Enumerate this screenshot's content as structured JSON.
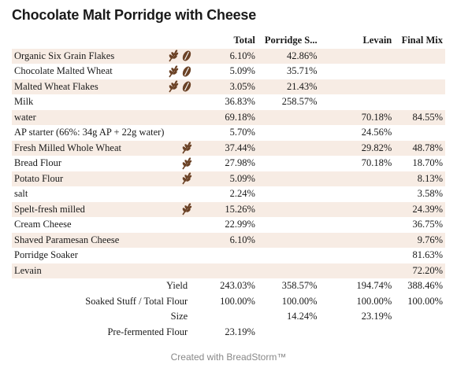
{
  "title": "Chocolate Malt Porridge with Cheese",
  "columns": [
    "Total",
    "Porridge S...",
    "Levain",
    "Final Mix"
  ],
  "icon_color": "#6b4226",
  "shade_color": "#f7ece4",
  "ingredients": [
    {
      "name": "Organic Six Grain Flakes",
      "icons": [
        "wheat-icon",
        "grain-icon"
      ],
      "shaded": true,
      "total": "6.10%",
      "soaker": "42.86%",
      "levain": "",
      "final": ""
    },
    {
      "name": "Chocolate Malted Wheat",
      "icons": [
        "wheat-icon",
        "grain-icon"
      ],
      "shaded": false,
      "total": "5.09%",
      "soaker": "35.71%",
      "levain": "",
      "final": ""
    },
    {
      "name": "Malted Wheat Flakes",
      "icons": [
        "wheat-icon",
        "grain-icon"
      ],
      "shaded": true,
      "total": "3.05%",
      "soaker": "21.43%",
      "levain": "",
      "final": ""
    },
    {
      "name": "Milk",
      "icons": [],
      "shaded": false,
      "total": "36.83%",
      "soaker": "258.57%",
      "levain": "",
      "final": ""
    },
    {
      "name": "water",
      "icons": [],
      "shaded": true,
      "total": "69.18%",
      "soaker": "",
      "levain": "70.18%",
      "final": "84.55%"
    },
    {
      "name": "AP starter (66%: 34g AP + 22g water)",
      "icons": [],
      "shaded": false,
      "total": "5.70%",
      "soaker": "",
      "levain": "24.56%",
      "final": ""
    },
    {
      "name": "Fresh Milled Whole Wheat",
      "icons": [
        "wheat-icon"
      ],
      "shaded": true,
      "total": "37.44%",
      "soaker": "",
      "levain": "29.82%",
      "final": "48.78%"
    },
    {
      "name": "Bread Flour",
      "icons": [
        "wheat-icon"
      ],
      "shaded": false,
      "total": "27.98%",
      "soaker": "",
      "levain": "70.18%",
      "final": "18.70%"
    },
    {
      "name": "Potato Flour",
      "icons": [
        "wheat-icon"
      ],
      "shaded": true,
      "total": "5.09%",
      "soaker": "",
      "levain": "",
      "final": "8.13%"
    },
    {
      "name": "salt",
      "icons": [],
      "shaded": false,
      "total": "2.24%",
      "soaker": "",
      "levain": "",
      "final": "3.58%"
    },
    {
      "name": "Spelt-fresh milled",
      "icons": [
        "wheat-icon"
      ],
      "shaded": true,
      "total": "15.26%",
      "soaker": "",
      "levain": "",
      "final": "24.39%"
    },
    {
      "name": "Cream Cheese",
      "icons": [],
      "shaded": false,
      "total": "22.99%",
      "soaker": "",
      "levain": "",
      "final": "36.75%"
    },
    {
      "name": "Shaved Paramesan Cheese",
      "icons": [],
      "shaded": true,
      "total": "6.10%",
      "soaker": "",
      "levain": "",
      "final": "9.76%"
    },
    {
      "name": "Porridge Soaker",
      "icons": [],
      "shaded": false,
      "total": "",
      "soaker": "",
      "levain": "",
      "final": "81.63%"
    },
    {
      "name": "Levain",
      "icons": [],
      "shaded": true,
      "total": "",
      "soaker": "",
      "levain": "",
      "final": "72.20%"
    }
  ],
  "summary": [
    {
      "label": "Yield",
      "total": "243.03%",
      "soaker": "358.57%",
      "levain": "194.74%",
      "final": "388.46%"
    },
    {
      "label": "Soaked Stuff / Total Flour",
      "total": "100.00%",
      "soaker": "100.00%",
      "levain": "100.00%",
      "final": "100.00%"
    },
    {
      "label": "Size",
      "total": "",
      "soaker": "14.24%",
      "levain": "23.19%",
      "final": ""
    },
    {
      "label": "Pre-fermented Flour",
      "total": "23.19%",
      "soaker": "",
      "levain": "",
      "final": ""
    }
  ],
  "footer": "Created with BreadStorm™"
}
